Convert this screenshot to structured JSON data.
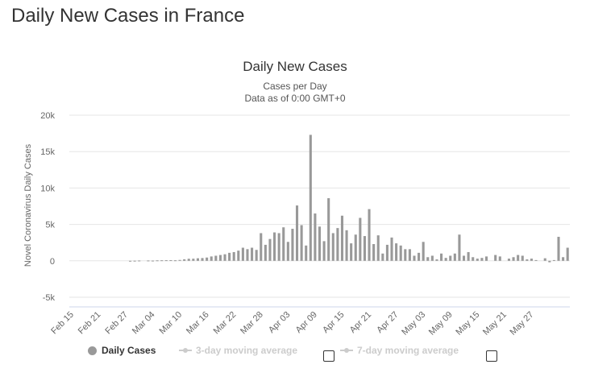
{
  "page": {
    "title": "Daily New Cases in France"
  },
  "legend": {
    "daily": "Daily Cases",
    "ma3": "3-day moving average",
    "ma7": "7-day moving average"
  },
  "colors": {
    "bars": "#999999",
    "grid": "#e6e6e6",
    "legend_inactive": "#cccccc",
    "text": "#333333"
  },
  "chart_data": {
    "type": "bar",
    "title": "Daily New Cases",
    "subtitle": [
      "Cases per Day",
      "Data as of 0:00 GMT+0"
    ],
    "xlabel": "",
    "ylabel": "Novel Coronavirus Daily Cases",
    "ylim": [
      -5000,
      20000
    ],
    "yticks": [
      -5000,
      0,
      5000,
      10000,
      15000,
      20000
    ],
    "ytick_labels": [
      "-5k",
      "0",
      "5k",
      "10k",
      "15k",
      "20k"
    ],
    "xtick_labels": [
      "Feb 15",
      "Feb 21",
      "Feb 27",
      "Mar 04",
      "Mar 10",
      "Mar 16",
      "Mar 22",
      "Mar 28",
      "Apr 03",
      "Apr 09",
      "Apr 15",
      "Apr 21",
      "Apr 27",
      "May 03",
      "May 09",
      "May 15",
      "May 21",
      "May 27"
    ],
    "x_start": "Feb 15",
    "x_end": "May 31",
    "grid": true,
    "legend_position": "bottom",
    "series": [
      {
        "name": "Daily Cases",
        "values": [
          0,
          0,
          0,
          0,
          0,
          0,
          0,
          0,
          0,
          0,
          0,
          0,
          0,
          2,
          15,
          38,
          0,
          43,
          30,
          61,
          73,
          80,
          92,
          70,
          120,
          210,
          285,
          290,
          350,
          380,
          450,
          600,
          700,
          800,
          900,
          1100,
          1200,
          1400,
          1800,
          1600,
          1800,
          1500,
          3800,
          2200,
          3000,
          3900,
          3800,
          4600,
          2600,
          4400,
          7600,
          4900,
          2100,
          17300,
          6500,
          4700,
          2700,
          8600,
          3800,
          4500,
          6200,
          4200,
          2400,
          3600,
          5900,
          3400,
          7100,
          2300,
          3500,
          1000,
          2200,
          3200,
          2400,
          2100,
          1600,
          1600,
          700,
          1100,
          2600,
          500,
          700,
          200,
          1000,
          400,
          700,
          1000,
          3600,
          700,
          1200,
          500,
          300,
          400,
          600,
          0,
          800,
          600,
          0,
          300,
          500,
          800,
          700,
          200,
          300,
          100,
          0,
          350,
          -200,
          100,
          3300,
          500,
          1800
        ]
      }
    ]
  }
}
